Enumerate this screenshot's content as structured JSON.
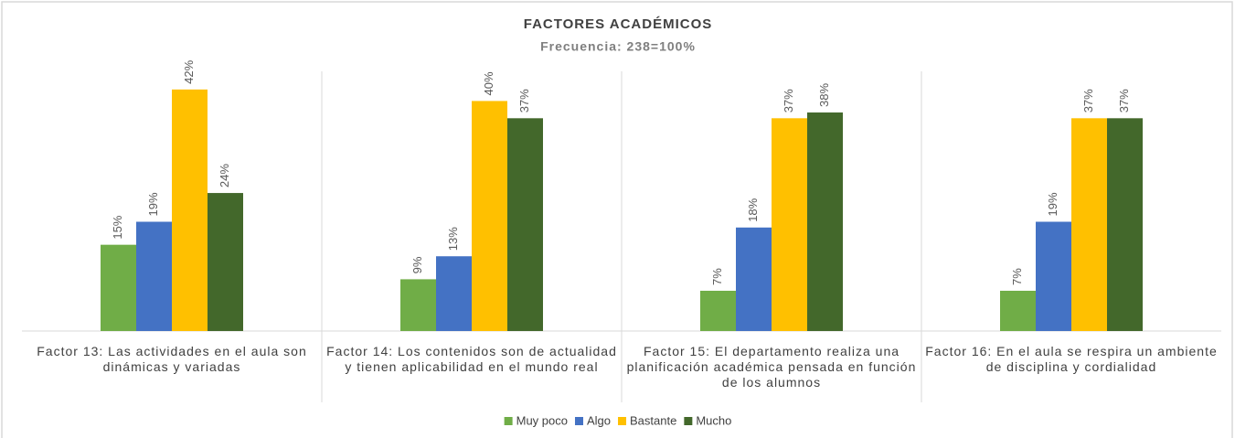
{
  "chart_data": {
    "type": "bar",
    "title": "FACTORES ACADÉMICOS",
    "subtitle": "Frecuencia: 238=100%",
    "categories": [
      "Factor 13: Las actividades en el aula son dinámicas y variadas",
      "Factor 14: Los contenidos son de actualidad y tienen aplicabilidad en el mundo real",
      "Factor 15: El departamento realiza una planificación académica pensada en función de los alumnos",
      "Factor 16: En el aula se respira un ambiente de disciplina y cordialidad"
    ],
    "series": [
      {
        "name": "Muy poco",
        "color": "#70ad47",
        "values": [
          15,
          9,
          7,
          7
        ],
        "value_labels": [
          "15%",
          "9%",
          "7%",
          "7%"
        ]
      },
      {
        "name": "Algo",
        "color": "#4472c4",
        "values": [
          19,
          13,
          18,
          19
        ],
        "value_labels": [
          "19%",
          "13%",
          "18%",
          "19%"
        ]
      },
      {
        "name": "Bastante",
        "color": "#ffc000",
        "values": [
          42,
          40,
          37,
          37
        ],
        "value_labels": [
          "42%",
          "40%",
          "37%",
          "37%"
        ]
      },
      {
        "name": "Mucho",
        "color": "#43682b",
        "values": [
          24,
          37,
          38,
          37
        ],
        "value_labels": [
          "24%",
          "37%",
          "38%",
          "37%"
        ]
      }
    ],
    "ylim": [
      0,
      45
    ],
    "legend": "bottom"
  }
}
